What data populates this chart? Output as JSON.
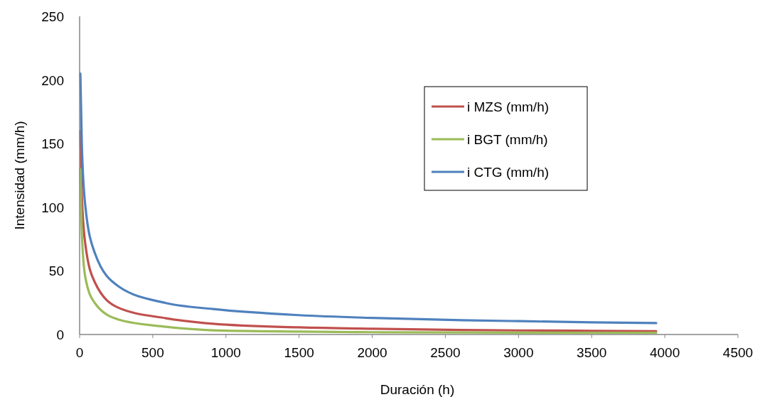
{
  "chart_data": {
    "type": "line",
    "xlabel": "Duración (h)",
    "ylabel": "Intensidad (mm/h)",
    "x": [
      5,
      15,
      39,
      104,
      266,
      590,
      913,
      1500,
      2000,
      2614,
      3000,
      3500,
      3941
    ],
    "series": [
      {
        "name": "i MZS (mm/h)",
        "color": "#c0504d",
        "values": [
          160,
          110,
          71,
          41,
          21,
          12.8,
          8.4,
          5.6,
          4.5,
          3.6,
          3.2,
          2.9,
          2.6
        ]
      },
      {
        "name": "i BGT (mm/h)",
        "color": "#9bbb59",
        "values": [
          130,
          80,
          45,
          24.7,
          11.7,
          6.1,
          3.3,
          2.3,
          1.8,
          1.6,
          1.5,
          1.4,
          1.3
        ]
      },
      {
        "name": "i CTG (mm/h)",
        "color": "#4f81bd",
        "values": [
          205,
          150,
          101,
          64,
          37.8,
          24.7,
          20,
          15.2,
          13,
          11.2,
          10.5,
          9.6,
          9.0
        ]
      }
    ],
    "xlim": [
      0,
      4500
    ],
    "xticks": [
      0,
      500,
      1000,
      1500,
      2000,
      2500,
      3000,
      3500,
      4000,
      4500
    ],
    "ylim": [
      0,
      250
    ],
    "yticks": [
      0,
      50,
      100,
      150,
      200,
      250
    ],
    "grid": false,
    "legend": "right",
    "marker": "none",
    "line_style": "solid"
  }
}
